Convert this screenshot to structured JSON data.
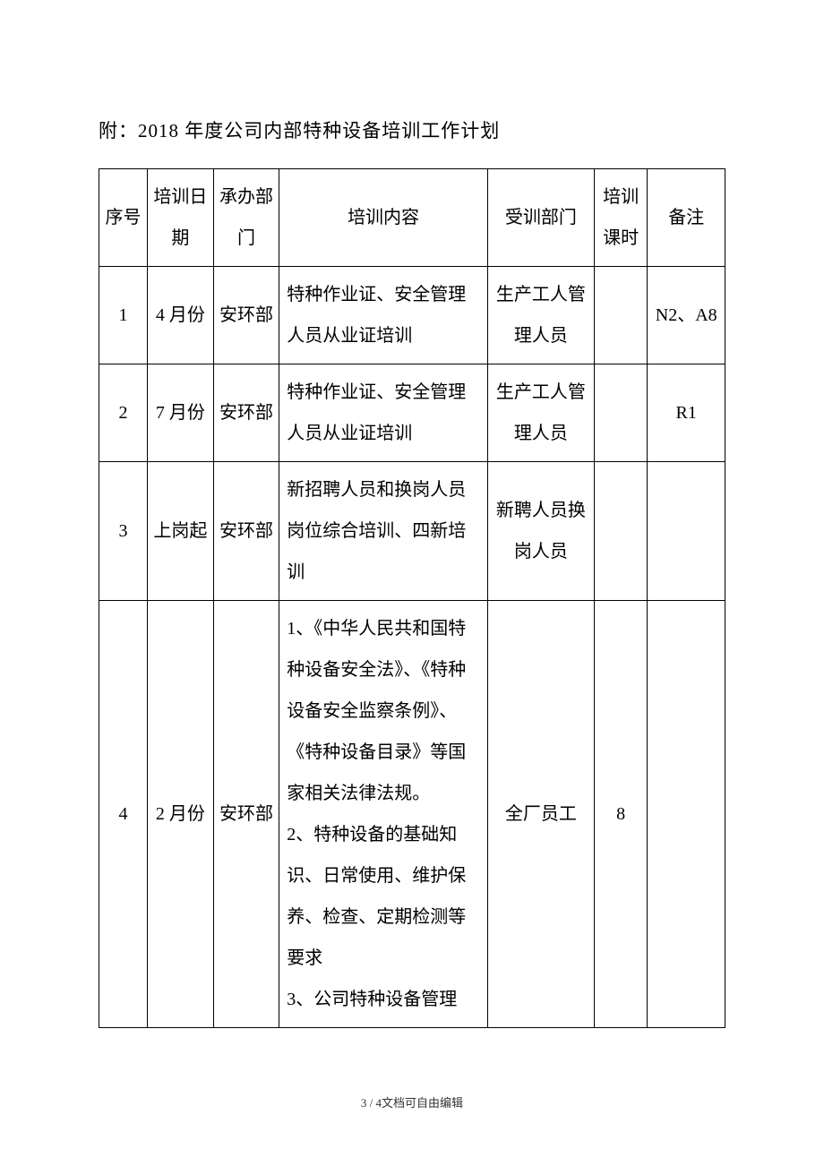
{
  "title": "附：2018 年度公司内部特种设备培训工作计划",
  "table": {
    "headers": {
      "seq": "序号",
      "date": "培训日期",
      "dept": "承办部门",
      "content": "培训内容",
      "trainee": "受训部门",
      "hours": "培训课时",
      "remark": "备注"
    },
    "rows": [
      {
        "seq": "1",
        "date": "4 月份",
        "dept": "安环部",
        "content": "特种作业证、安全管理人员从业证培训",
        "trainee": "生产工人管理人员",
        "hours": "",
        "remark": "N2、A8"
      },
      {
        "seq": "2",
        "date": "7 月份",
        "dept": "安环部",
        "content": "特种作业证、安全管理人员从业证培训",
        "trainee": "生产工人管理人员",
        "hours": "",
        "remark": "R1"
      },
      {
        "seq": "3",
        "date": "上岗起",
        "dept": "安环部",
        "content": "新招聘人员和换岗人员岗位综合培训、四新培训",
        "trainee": "新聘人员换岗人员",
        "hours": "",
        "remark": ""
      },
      {
        "seq": "4",
        "date": "2 月份",
        "dept": "安环部",
        "content": "1、《中华人民共和国特种设备安全法》、《特种设备安全监察条例》、《特种设备目录》等国家相关法律法规。\n2、特种设备的基础知识、日常使用、维护保养、检查、定期检测等要求\n3、公司特种设备管理",
        "trainee": "全厂员工",
        "hours": "8",
        "remark": ""
      }
    ]
  },
  "footer": {
    "page": "3 / 4",
    "note": "文档可自由编辑"
  },
  "style": {
    "background_color": "#ffffff",
    "text_color": "#000000",
    "border_color": "#000000",
    "font_family": "SimSun",
    "title_fontsize": 21,
    "cell_fontsize": 20,
    "footer_fontsize": 13,
    "line_height": 2.3
  }
}
